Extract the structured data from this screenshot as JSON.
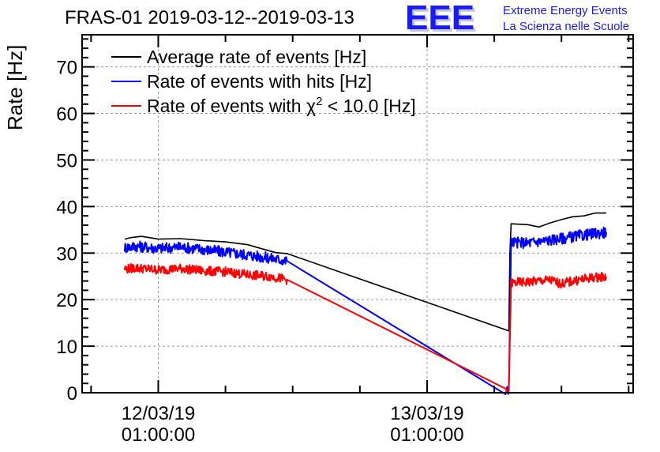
{
  "chart_data": {
    "type": "line",
    "title": "FRAS-01 2019-03-12--2019-03-13",
    "xlabel": "",
    "ylabel": "Rate [Hz]",
    "ylim": [
      0,
      76.9
    ],
    "yticks": [
      0,
      10,
      20,
      30,
      40,
      50,
      60,
      70
    ],
    "ytick_labels": [
      "0",
      "10",
      "20",
      "30",
      "40",
      "50",
      "60",
      "70"
    ],
    "x_unit": "hours since 2019-03-12 01:00:00",
    "xlim": [
      -6.8,
      42.4
    ],
    "xticks": [
      0,
      24
    ],
    "xtick_labels": [
      [
        "12/03/19",
        "01:00:00"
      ],
      [
        "13/03/19",
        "01:00:00"
      ]
    ],
    "x_minor_step_hours": 6,
    "grid": true,
    "legend_position": "top-left",
    "series": [
      {
        "name": "Average rate of events [Hz]",
        "color": "#000000",
        "points": [
          [
            -3.0,
            33.0
          ],
          [
            -2.5,
            33.3
          ],
          [
            -1.5,
            33.6
          ],
          [
            0,
            33.0
          ],
          [
            2,
            33.1
          ],
          [
            4,
            32.7
          ],
          [
            6,
            32.4
          ],
          [
            8,
            31.8
          ],
          [
            9,
            31.1
          ],
          [
            10.5,
            30.1
          ],
          [
            11.5,
            29.9
          ],
          [
            31.3,
            13.3
          ],
          [
            31.4,
            30.0
          ],
          [
            31.5,
            36.3
          ],
          [
            33,
            36.1
          ],
          [
            34,
            35.6
          ],
          [
            35,
            36.5
          ],
          [
            36,
            37.2
          ],
          [
            37,
            37.8
          ],
          [
            38,
            38.0
          ],
          [
            39,
            38.6
          ],
          [
            40,
            38.6
          ]
        ]
      },
      {
        "name": "Rate of events with hits [Hz]",
        "color": "#0000ff",
        "points": [
          [
            -3.0,
            31.2
          ],
          [
            -2,
            31.5
          ],
          [
            0,
            31.0
          ],
          [
            2,
            31.3
          ],
          [
            4,
            30.8
          ],
          [
            6,
            30.2
          ],
          [
            8,
            29.6
          ],
          [
            10,
            28.9
          ],
          [
            11.5,
            28.3
          ],
          [
            31.0,
            0.2
          ],
          [
            31.3,
            0.5
          ],
          [
            31.5,
            32.3
          ],
          [
            33,
            32.2
          ],
          [
            35,
            32.8
          ],
          [
            37,
            33.5
          ],
          [
            39,
            34.2
          ],
          [
            40,
            34.5
          ]
        ],
        "noise_amplitude": 1.2
      },
      {
        "name": "Rate of events with χ² < 10.0 [Hz]",
        "color": "#ff0000",
        "points": [
          [
            -3.0,
            26.6
          ],
          [
            -2,
            26.8
          ],
          [
            0,
            26.4
          ],
          [
            2,
            26.7
          ],
          [
            4,
            26.2
          ],
          [
            6,
            26.0
          ],
          [
            8,
            25.3
          ],
          [
            10,
            25.0
          ],
          [
            11.5,
            24.3
          ],
          [
            31.0,
            0.0
          ],
          [
            31.3,
            0.3
          ],
          [
            31.5,
            23.6
          ],
          [
            33,
            23.8
          ],
          [
            35,
            24.2
          ],
          [
            36,
            23.4
          ],
          [
            37,
            24.0
          ],
          [
            39,
            24.8
          ],
          [
            40,
            24.9
          ]
        ],
        "noise_amplitude": 1.0
      }
    ],
    "legend": [
      {
        "label_main": "Rate of events with hits [Hz]"
      }
    ]
  },
  "legend_entries": [
    {
      "text": "Average rate of events [Hz]",
      "color": "#000000"
    },
    {
      "text": "Rate of events with hits [Hz]",
      "color": "#0000ff"
    },
    {
      "text_before": "Rate of events with ",
      "symbol": "χ",
      "superscript": "2",
      "text_after": " < 10.0 [Hz]",
      "color": "#ff0000"
    }
  ],
  "logo": {
    "mark": "EEE",
    "line1": "Extreme Energy Events",
    "line2": "La Scienza nelle Scuole",
    "color": "#1a1aff"
  }
}
